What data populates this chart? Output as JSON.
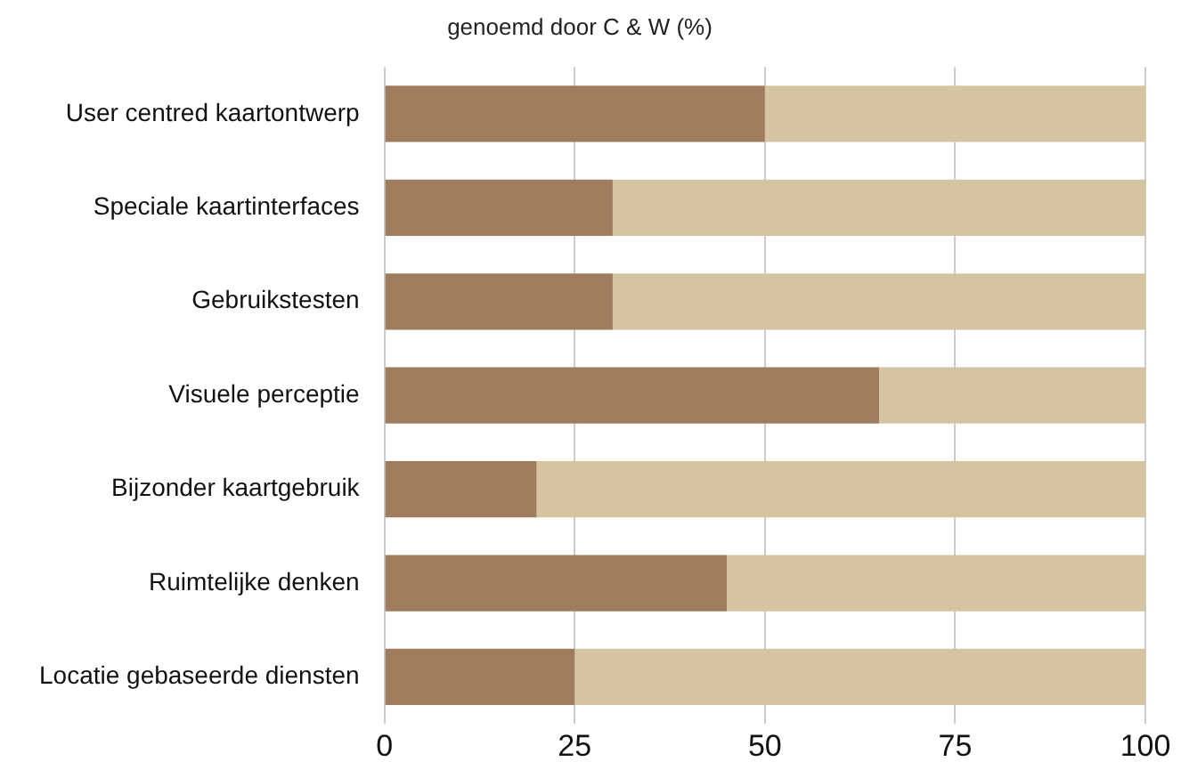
{
  "chart_data": {
    "type": "bar",
    "orientation": "horizontal",
    "stacked": true,
    "title": "genoemd door C & W (%)",
    "categories": [
      "User centred kaartontwerp",
      "Speciale kaartinterfaces",
      "Gebruikstesten",
      "Visuele perceptie",
      "Bijzonder kaartgebruik",
      "Ruimtelijke denken",
      "Locatie gebaseerde diensten"
    ],
    "series": [
      {
        "color": "#a07c5e",
        "values": [
          50,
          30,
          30,
          65,
          20,
          45,
          25
        ]
      },
      {
        "color": "#d5c4a1",
        "values": [
          50,
          70,
          70,
          35,
          80,
          55,
          75
        ]
      }
    ],
    "xlim": [
      0,
      100
    ],
    "xticks": [
      0,
      25,
      50,
      75,
      100
    ],
    "grid": "x",
    "legend": false
  }
}
